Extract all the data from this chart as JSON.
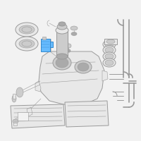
{
  "bg_color": "#f2f2f2",
  "line_color": "#9a9a9a",
  "lc_dark": "#777777",
  "highlight_edge": "#3388cc",
  "highlight_fill": "#66bbff",
  "white": "#ffffff",
  "light_gray": "#e8e8e8",
  "mid_gray": "#cccccc",
  "dark_gray": "#aaaaaa"
}
